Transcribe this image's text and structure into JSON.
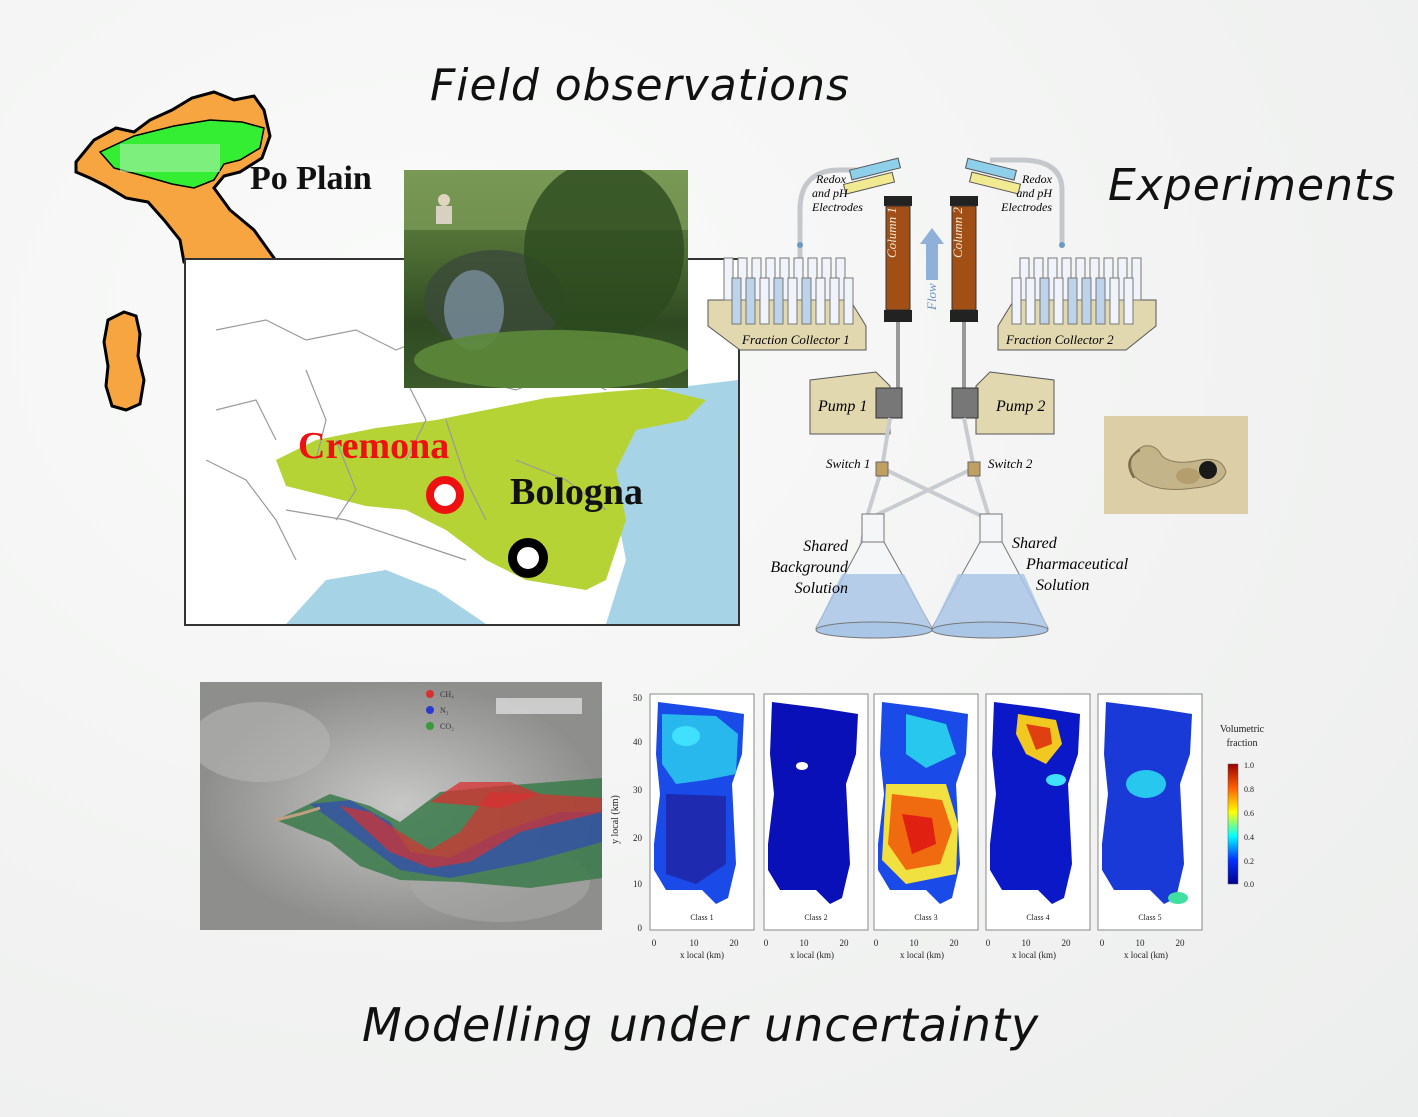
{
  "headings": {
    "field": "Field observations",
    "experiments": "Experiments",
    "modelling": "Modelling under uncertainty"
  },
  "map": {
    "region_label": "Po Plain",
    "city1": "Cremona",
    "city2": "Bologna"
  },
  "experiment": {
    "electrode1": [
      "Redox",
      "and pH",
      "Electrodes"
    ],
    "electrode2": [
      "Redox",
      "and pH",
      "Electrodes"
    ],
    "column1": "Column 1",
    "column2": "Column 2",
    "flow": "Flow",
    "collector1": "Fraction Collector 1",
    "collector2": "Fraction Collector 2",
    "pump1": "Pump 1",
    "pump2": "Pump 2",
    "switch1": "Switch 1",
    "switch2": "Switch 2",
    "solution1": [
      "Shared",
      "Background",
      "Solution"
    ],
    "solution2": [
      "Shared",
      "Pharmaceutical",
      "Solution"
    ]
  },
  "sim_legend": [
    "CH₄",
    "N₂",
    "CO₂"
  ],
  "maps": {
    "panels": [
      "Class 1",
      "Class 2",
      "Class 3",
      "Class 4",
      "Class 5"
    ],
    "y_label": "y local (km)",
    "x_label": "x local (km)",
    "y_ticks": [
      "50",
      "40",
      "30",
      "20",
      "10",
      "0"
    ],
    "x_ticks": [
      "0",
      "10",
      "20"
    ],
    "colorbar_title": [
      "Volumetric",
      "fraction"
    ],
    "colorbar_ticks": [
      "1.0",
      "0.8",
      "0.6",
      "0.4",
      "0.2",
      "0.0"
    ]
  },
  "colors": {
    "italy": "#f7a541",
    "po_plain": "#33ee33",
    "plain_map": "#b5d334",
    "sea": "#a6d3e6",
    "cremona_marker": "#ee1111",
    "bologna_marker": "#000000",
    "column": "#a24f16"
  }
}
